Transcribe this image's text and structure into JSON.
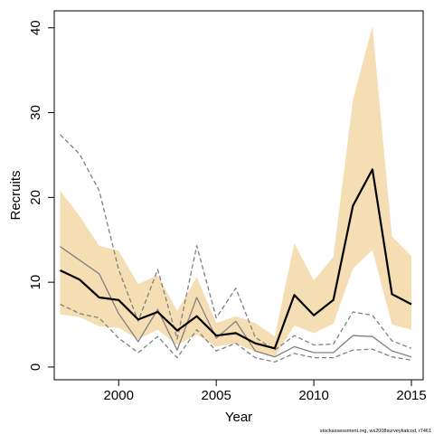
{
  "chart_data": {
    "type": "line",
    "xlabel": "Year",
    "ylabel": "Recruits",
    "xlim": [
      1996.7,
      2015.6
    ],
    "ylim": [
      -1.5,
      42
    ],
    "xticks": [
      "2000",
      "2005",
      "2010",
      "2015"
    ],
    "yticks": [
      "0",
      "10",
      "20",
      "30",
      "40"
    ],
    "x": [
      1997,
      1998,
      1999,
      2000,
      2001,
      2002,
      2003,
      2004,
      2005,
      2006,
      2007,
      2008,
      2009,
      2010,
      2011,
      2012,
      2013,
      2014,
      2015
    ],
    "band": {
      "color": "#f5deb3",
      "lower": [
        6.2,
        5.9,
        4.8,
        4.6,
        3.3,
        4.4,
        2.6,
        3.8,
        2.4,
        2.8,
        1.8,
        1.2,
        4.9,
        4.0,
        5.1,
        11.6,
        13.8,
        5.0,
        4.4
      ],
      "upper": [
        20.8,
        17.8,
        14.3,
        13.7,
        9.8,
        10.8,
        6.6,
        10.6,
        5.2,
        6.0,
        5.2,
        3.6,
        14.6,
        10.2,
        13.0,
        31.5,
        40.2,
        15.4,
        13.1
      ]
    },
    "series": [
      {
        "role": "estimate",
        "color": "#000000",
        "values": [
          11.4,
          10.3,
          8.2,
          7.9,
          5.6,
          6.5,
          4.3,
          6.0,
          3.7,
          4.0,
          2.8,
          2.2,
          8.5,
          6.1,
          7.9,
          19.0,
          23.3,
          8.6,
          7.4
        ]
      },
      {
        "role": "comparison",
        "color": "#808080",
        "values": [
          14.2,
          12.6,
          11.0,
          6.3,
          3.0,
          6.8,
          2.0,
          8.2,
          3.4,
          5.4,
          1.9,
          1.2,
          2.4,
          1.7,
          1.7,
          3.7,
          3.6,
          1.9,
          1.2
        ]
      },
      {
        "role": "comparison-upper",
        "color": "#808080",
        "dashed": true,
        "values": [
          27.4,
          25.1,
          20.8,
          11.5,
          5.4,
          11.5,
          3.3,
          14.3,
          5.8,
          9.3,
          3.5,
          2.0,
          3.7,
          2.6,
          2.7,
          6.5,
          6.1,
          3.1,
          2.2
        ]
      },
      {
        "role": "comparison-lower",
        "color": "#808080",
        "dashed": true,
        "values": [
          7.4,
          6.3,
          5.8,
          3.4,
          1.7,
          3.6,
          1.1,
          4.4,
          1.9,
          2.8,
          1.1,
          0.6,
          1.6,
          1.1,
          1.1,
          2.0,
          2.1,
          1.2,
          0.8
        ]
      }
    ],
    "grid": false,
    "legend": "none",
    "credit": "stockassessment.org, ws2008surveykatcod, r7461"
  }
}
